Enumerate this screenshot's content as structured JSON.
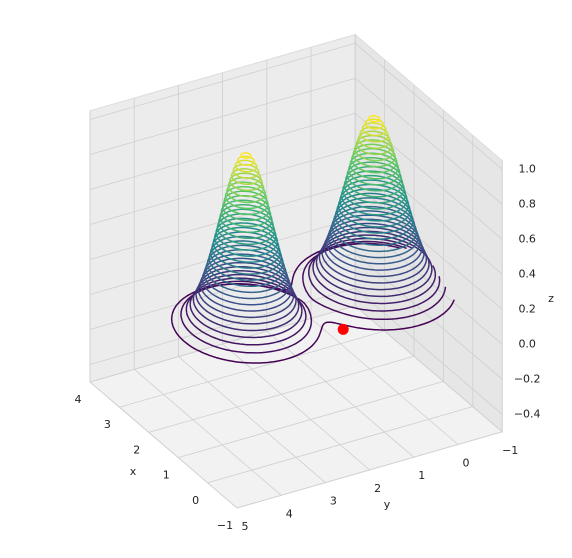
{
  "chart_data": {
    "type": "contour3d",
    "xlabel": "x",
    "ylabel": "y",
    "zlabel": "z",
    "xlim": [
      -1,
      4
    ],
    "ylim": [
      -1,
      5
    ],
    "zlim": [
      -0.5,
      1.05
    ],
    "xticks": [
      {
        "value": -1,
        "label": "−1"
      },
      0,
      1,
      2,
      3,
      4
    ],
    "yticks": [
      {
        "value": -1,
        "label": "−1"
      },
      0,
      1,
      2,
      3,
      4,
      5
    ],
    "zticks": [
      {
        "value": -0.4,
        "label": "−0.4"
      },
      {
        "value": -0.2,
        "label": "−0.2"
      },
      {
        "value": 0,
        "label": "0.0"
      },
      0.2,
      0.4,
      0.6,
      0.8,
      {
        "value": 1,
        "label": "1.0"
      }
    ],
    "levels": [
      0.02,
      0.05,
      0.08,
      0.11,
      0.14,
      0.17,
      0.2,
      0.23,
      0.26,
      0.29,
      0.32,
      0.35,
      0.38,
      0.41,
      0.44,
      0.47,
      0.5,
      0.53,
      0.56,
      0.59,
      0.62,
      0.65,
      0.68,
      0.71,
      0.74,
      0.77,
      0.8,
      0.83,
      0.86,
      0.89,
      0.92,
      0.95,
      0.98
    ],
    "point": {
      "x": 0.8,
      "y": 1.4,
      "z": 0,
      "color": "#ff0000"
    },
    "grid": true
  }
}
